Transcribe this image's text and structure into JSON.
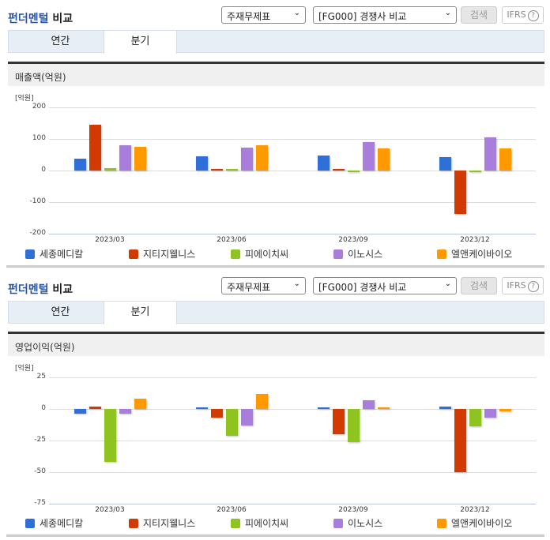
{
  "panels": [
    {
      "title_part1": "펀더멘털",
      "title_part2": "비교",
      "select1": "주재무제표",
      "select2": "[FG000] 경쟁사 비교",
      "search_label": "검색",
      "ifrs_label": "IFRS",
      "help_glyph": "?",
      "tabs": [
        {
          "label": "연간"
        },
        {
          "label": "분기",
          "active": true
        }
      ],
      "metric": "매출액(억원)",
      "unit": "[억원]",
      "yticks": [
        "200",
        "100",
        "0",
        "-100",
        "-200"
      ]
    },
    {
      "title_part1": "펀더멘털",
      "title_part2": "비교",
      "select1": "주재무제표",
      "select2": "[FG000] 경쟁사 비교",
      "search_label": "검색",
      "ifrs_label": "IFRS",
      "help_glyph": "?",
      "tabs": [
        {
          "label": "연간"
        },
        {
          "label": "분기",
          "active": true
        }
      ],
      "metric": "영업이익(억원)",
      "unit": "[억원]",
      "yticks": [
        "25",
        "0",
        "-25",
        "-50",
        "-75"
      ]
    }
  ],
  "legend": [
    {
      "name": "세종메디칼",
      "color": "#2e6fd8"
    },
    {
      "name": "지티지웰니스",
      "color": "#d13a00"
    },
    {
      "name": "피에이치씨",
      "color": "#8fc31f"
    },
    {
      "name": "이노시스",
      "color": "#a97ddb"
    },
    {
      "name": "엘앤케이바이오",
      "color": "#ff9900"
    }
  ],
  "chart_data": [
    {
      "type": "bar",
      "title": "매출액(억원)",
      "ylabel": "[억원]",
      "ylim": [
        -200,
        200
      ],
      "categories": [
        "2023/03",
        "2023/06",
        "2023/09",
        "2023/12"
      ],
      "series": [
        {
          "name": "세종메디칼",
          "values": [
            38,
            45,
            47,
            42
          ]
        },
        {
          "name": "지티지웰니스",
          "values": [
            145,
            6,
            4,
            -138
          ]
        },
        {
          "name": "피에이치씨",
          "values": [
            8,
            4,
            1,
            1
          ]
        },
        {
          "name": "이노시스",
          "values": [
            79,
            72,
            89,
            104
          ]
        },
        {
          "name": "엘앤케이바이오",
          "values": [
            76,
            80,
            70,
            70
          ]
        }
      ]
    },
    {
      "type": "bar",
      "title": "영업이익(억원)",
      "ylabel": "[억원]",
      "ylim": [
        -75,
        25
      ],
      "categories": [
        "2023/03",
        "2023/06",
        "2023/09",
        "2023/12"
      ],
      "series": [
        {
          "name": "세종메디칼",
          "values": [
            -4,
            1,
            1,
            2
          ]
        },
        {
          "name": "지티지웰니스",
          "values": [
            2,
            -7,
            -20,
            -50
          ]
        },
        {
          "name": "피에이치씨",
          "values": [
            -42,
            -21,
            -26,
            -14
          ]
        },
        {
          "name": "이노시스",
          "values": [
            -4,
            -13,
            7,
            -7
          ]
        },
        {
          "name": "엘앤케이바이오",
          "values": [
            8,
            12,
            1,
            -2
          ]
        }
      ]
    }
  ]
}
